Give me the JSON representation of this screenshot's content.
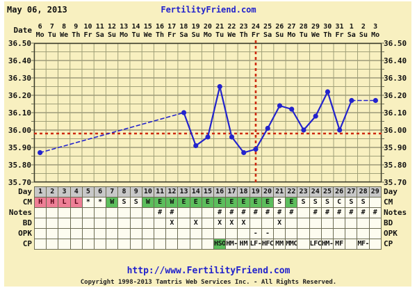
{
  "header": {
    "date_label": "May 06, 2013",
    "site_link": "FertilityFriend.com"
  },
  "footer": {
    "url": "http://www.FertilityFriend.com",
    "copyright": "Copyright 1998-2013 Tamtris Web Services Inc. - All Rights Reserved."
  },
  "colors": {
    "canvas_bg": "#f8f0c0",
    "grid_minor": "#a0a078",
    "grid_major": "#6e6e54",
    "plot_border": "#3a3a28",
    "temp_blue": "#2323cd",
    "signal_red": "#cd2a10",
    "link_blue": "#2222cc",
    "day_row_grey": "#c8c8c8",
    "cm_pink": "#ee7f96",
    "cm_green": "#5cbe5c",
    "cell_white": "#fdfcf0"
  },
  "chart_data": {
    "type": "line",
    "title": "Basal body temperature cycle chart (Celsius)",
    "x_axis": {
      "label": "Date",
      "dates": [
        6,
        7,
        8,
        9,
        10,
        11,
        12,
        13,
        14,
        15,
        16,
        17,
        18,
        19,
        20,
        21,
        22,
        23,
        24,
        25,
        26,
        27,
        28,
        29,
        30,
        31,
        1,
        2,
        3
      ],
      "weekdays": [
        "Mo",
        "Tu",
        "We",
        "Th",
        "Fr",
        "Sa",
        "Su",
        "Mo",
        "Tu",
        "We",
        "Th",
        "Fr",
        "Sa",
        "Su",
        "Mo",
        "Tu",
        "We",
        "Th",
        "Fr",
        "Sa",
        "Su",
        "Mo",
        "Tu",
        "We",
        "Th",
        "Fr",
        "Sa",
        "Su",
        "Mo"
      ]
    },
    "y_axis": {
      "ticks": [
        "36.50",
        "36.40",
        "36.30",
        "36.20",
        "36.10",
        "36.00",
        "35.90",
        "35.80",
        "35.70"
      ],
      "max": 36.5,
      "min": 35.7,
      "minor_step": 0.05
    },
    "series": [
      {
        "name": "temperature",
        "temps_by_day": [
          35.87,
          null,
          null,
          null,
          null,
          null,
          null,
          null,
          null,
          null,
          null,
          null,
          36.1,
          35.91,
          35.96,
          36.25,
          35.96,
          35.87,
          35.89,
          36.01,
          36.14,
          36.12,
          36.0,
          36.08,
          36.22,
          36.0,
          36.17,
          null,
          36.17
        ],
        "gap_style": "dashed"
      }
    ],
    "coverline_temp": 35.98,
    "ovulation_day": 19,
    "row_labels": [
      "Day",
      "CM",
      "Notes",
      "BD",
      "OPK",
      "CP"
    ],
    "rows": {
      "day": [
        "1",
        "2",
        "3",
        "4",
        "5",
        "6",
        "7",
        "8",
        "9",
        "10",
        "11",
        "12",
        "13",
        "14",
        "15",
        "16",
        "17",
        "18",
        "19",
        "20",
        "21",
        "22",
        "23",
        "24",
        "25",
        "26",
        "27",
        "28",
        "29"
      ],
      "cm": [
        {
          "v": "H",
          "bg": "pink"
        },
        {
          "v": "H",
          "bg": "pink"
        },
        {
          "v": "L",
          "bg": "pink"
        },
        {
          "v": "L",
          "bg": "pink"
        },
        {
          "v": "*",
          "bg": "white"
        },
        {
          "v": "*",
          "bg": "white"
        },
        {
          "v": "W",
          "bg": "green"
        },
        {
          "v": "S",
          "bg": "white"
        },
        {
          "v": "S",
          "bg": "white"
        },
        {
          "v": "W",
          "bg": "green"
        },
        {
          "v": "E",
          "bg": "green"
        },
        {
          "v": "W",
          "bg": "green"
        },
        {
          "v": "E",
          "bg": "green"
        },
        {
          "v": "E",
          "bg": "green"
        },
        {
          "v": "E",
          "bg": "green"
        },
        {
          "v": "E",
          "bg": "green"
        },
        {
          "v": "E",
          "bg": "green"
        },
        {
          "v": "E",
          "bg": "green"
        },
        {
          "v": "E",
          "bg": "green"
        },
        {
          "v": "E",
          "bg": "green"
        },
        {
          "v": "S",
          "bg": "white"
        },
        {
          "v": "E",
          "bg": "green"
        },
        {
          "v": "S",
          "bg": "white"
        },
        {
          "v": "S",
          "bg": "white"
        },
        {
          "v": "S",
          "bg": "white"
        },
        {
          "v": "C",
          "bg": "white"
        },
        {
          "v": "S",
          "bg": "white"
        },
        {
          "v": "S",
          "bg": "white"
        },
        {
          "v": "",
          "bg": "white"
        }
      ],
      "notes": [
        "",
        "",
        "",
        "",
        "",
        "",
        "",
        "",
        "",
        "",
        "#",
        "#",
        "",
        "",
        "",
        "#",
        "#",
        "#",
        "#",
        "#",
        "#",
        "#",
        "",
        "#",
        "#",
        "#",
        "#",
        "#",
        "#"
      ],
      "bd": [
        "",
        "",
        "",
        "",
        "",
        "",
        "",
        "",
        "",
        "",
        "",
        "X",
        "",
        "X",
        "",
        "X",
        "X",
        "X",
        "",
        "",
        "X",
        "",
        "",
        "",
        "",
        "",
        "",
        "",
        ""
      ],
      "opk": [
        "",
        "",
        "",
        "",
        "",
        "",
        "",
        "",
        "",
        "",
        "",
        "",
        "",
        "",
        "",
        "",
        "",
        "",
        "-",
        "-",
        "",
        "",
        "",
        "",
        "",
        "",
        "",
        "",
        ""
      ],
      "cp": [
        {
          "v": ""
        },
        {
          "v": ""
        },
        {
          "v": ""
        },
        {
          "v": ""
        },
        {
          "v": ""
        },
        {
          "v": ""
        },
        {
          "v": ""
        },
        {
          "v": ""
        },
        {
          "v": ""
        },
        {
          "v": ""
        },
        {
          "v": ""
        },
        {
          "v": ""
        },
        {
          "v": ""
        },
        {
          "v": ""
        },
        {
          "v": ""
        },
        {
          "v": "HSO",
          "bg": "green"
        },
        {
          "v": "HM-"
        },
        {
          "v": "HM",
          "bold": true
        },
        {
          "v": "LF-"
        },
        {
          "v": "HFC"
        },
        {
          "v": "MM",
          "bold": true
        },
        {
          "v": "MMC"
        },
        {
          "v": ""
        },
        {
          "v": "LFC"
        },
        {
          "v": "HM-"
        },
        {
          "v": "MF",
          "bold": true
        },
        {
          "v": ""
        },
        {
          "v": "MF-"
        },
        {
          "v": ""
        }
      ]
    }
  }
}
